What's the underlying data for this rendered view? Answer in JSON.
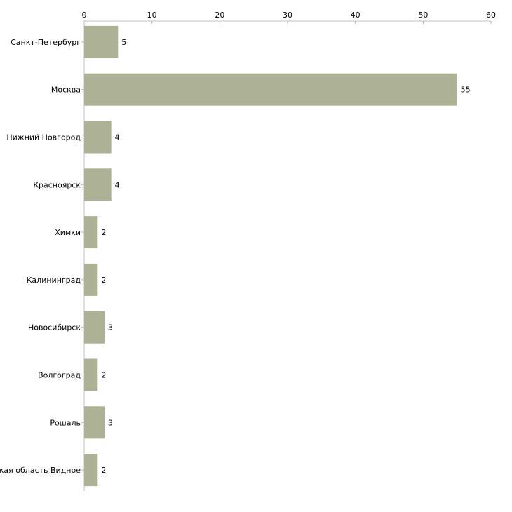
{
  "chart_data": {
    "type": "bar",
    "orientation": "horizontal",
    "title": "",
    "xlabel": "",
    "ylabel": "",
    "xlim": [
      0,
      60
    ],
    "x_ticks": [
      0,
      10,
      20,
      30,
      40,
      50,
      60
    ],
    "grid": false,
    "legend": "none",
    "bar_color": "#adb297",
    "categories": [
      "Санкт-Петербург",
      "Москва",
      "Нижний Новгород",
      "Красноярск",
      "Химки",
      "Калининград",
      "Новосибирск",
      "Волгоград",
      "Рошаль",
      "ская область Видное"
    ],
    "values": [
      5,
      55,
      4,
      4,
      2,
      2,
      3,
      2,
      3,
      2
    ]
  }
}
